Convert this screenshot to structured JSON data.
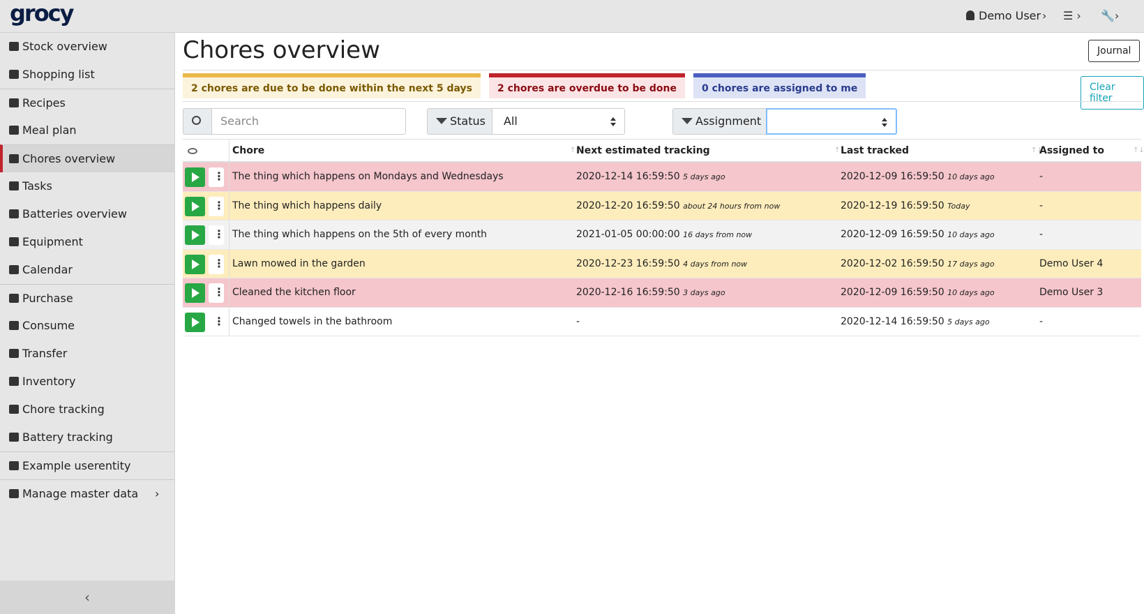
{
  "header": {
    "logo": "grocy",
    "user": "Demo User"
  },
  "sidebar": {
    "groups": [
      [
        "Stock overview",
        "Shopping list"
      ],
      [
        "Recipes",
        "Meal plan"
      ],
      [
        "Chores overview",
        "Tasks",
        "Batteries overview",
        "Equipment",
        "Calendar"
      ],
      [
        "Purchase",
        "Consume",
        "Transfer",
        "Inventory",
        "Chore tracking",
        "Battery tracking"
      ],
      [
        "Example userentity"
      ],
      [
        "Manage master data"
      ]
    ],
    "active": "Chores overview"
  },
  "page": {
    "title": "Chores overview",
    "journal_button": "Journal",
    "clear_filter_button": "Clear filter"
  },
  "badges": [
    {
      "text": "2 chores are due to be done within the next 5 days",
      "color": "#e9b949",
      "bg": "#fcf3dc",
      "fg": "#7a5a00"
    },
    {
      "text": "2 chores are overdue to be done",
      "color": "#c0242c",
      "bg": "#fbe4e5",
      "fg": "#8a0b12"
    },
    {
      "text": "0 chores are assigned to me",
      "color": "#4b5fc0",
      "bg": "#dde3f5",
      "fg": "#2a3c8c"
    }
  ],
  "filters": {
    "search_placeholder": "Search",
    "status_label": "Status",
    "status_value": "All",
    "assignment_label": "Assignment"
  },
  "table": {
    "headers": [
      "Chore",
      "Next estimated tracking",
      "Last tracked",
      "Assigned to"
    ],
    "rows": [
      {
        "chore": "The thing which happens on Mondays and Wednesdays",
        "next": "2020-12-14 16:59:50",
        "next_rel": "5 days ago",
        "last": "2020-12-09 16:59:50",
        "last_rel": "10 days ago",
        "assigned": "-",
        "color": "#f5c6cc"
      },
      {
        "chore": "The thing which happens daily",
        "next": "2020-12-20 16:59:50",
        "next_rel": "about 24 hours from now",
        "last": "2020-12-19 16:59:50",
        "last_rel": "Today",
        "assigned": "-",
        "color": "#feedbc"
      },
      {
        "chore": "The thing which happens on the 5th of every month",
        "next": "2021-01-05 00:00:00",
        "next_rel": "16 days from now",
        "last": "2020-12-09 16:59:50",
        "last_rel": "10 days ago",
        "assigned": "-",
        "color": "#f2f2f2"
      },
      {
        "chore": "Lawn mowed in the garden",
        "next": "2020-12-23 16:59:50",
        "next_rel": "4 days from now",
        "last": "2020-12-02 16:59:50",
        "last_rel": "17 days ago",
        "assigned": "Demo User 4",
        "color": "#feedbc"
      },
      {
        "chore": "Cleaned the kitchen floor",
        "next": "2020-12-16 16:59:50",
        "next_rel": "3 days ago",
        "last": "2020-12-09 16:59:50",
        "last_rel": "10 days ago",
        "assigned": "Demo User 3",
        "color": "#f5c6cc"
      },
      {
        "chore": "Changed towels in the bathroom",
        "next": "-",
        "next_rel": null,
        "last": "2020-12-14 16:59:50",
        "last_rel": "5 days ago",
        "assigned": "-",
        "color": "#ffffff"
      }
    ]
  }
}
